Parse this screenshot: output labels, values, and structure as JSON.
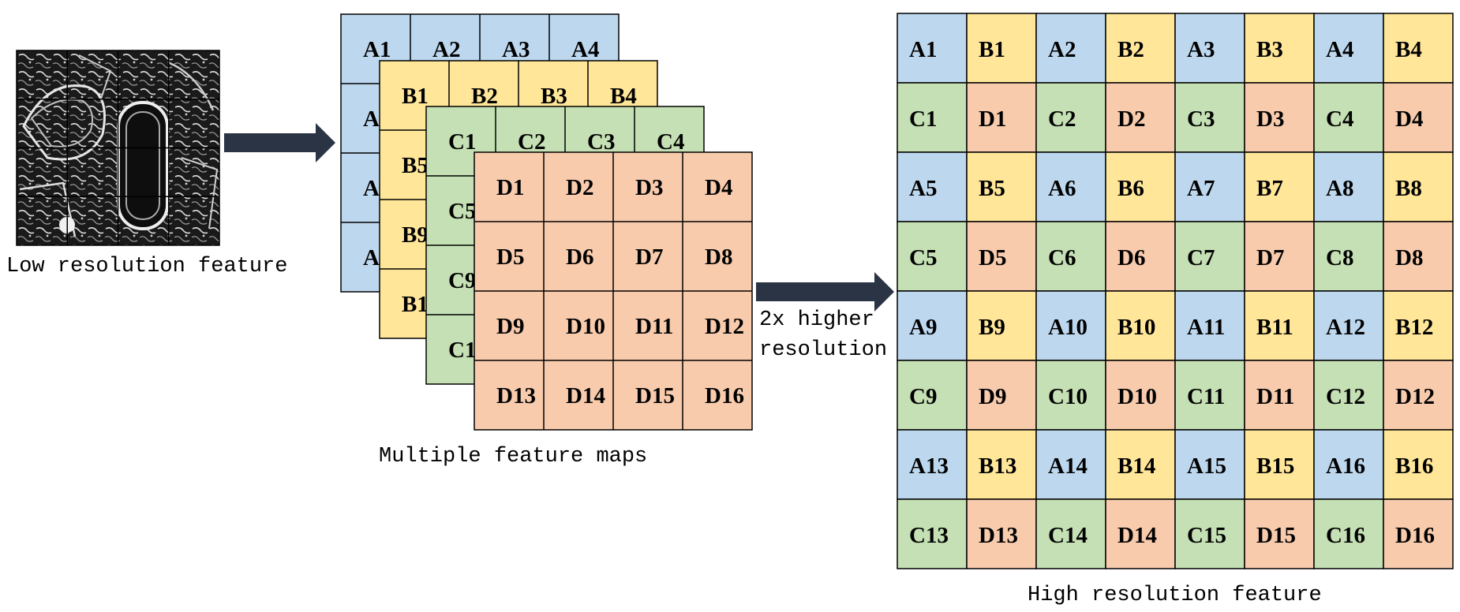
{
  "colors": {
    "A": "#bdd7ee",
    "B": "#ffe699",
    "C": "#c5e0b4",
    "D": "#f8cbad",
    "arrow": "#2a3444",
    "grid_line": "#000000"
  },
  "low_res": {
    "caption": "Low resolution feature"
  },
  "feature_maps": {
    "caption": "Multiple feature maps",
    "layers": [
      {
        "prefix": "A",
        "visible_labels": [
          "A1",
          "A2",
          "A3",
          "A4",
          "A",
          "A",
          "A1"
        ]
      },
      {
        "prefix": "B",
        "visible_labels": [
          "B1",
          "B2",
          "B3",
          "B4",
          "B5",
          "B9",
          "B1"
        ]
      },
      {
        "prefix": "C",
        "visible_labels": [
          "C1",
          "C2",
          "C3",
          "C4",
          "C5",
          "C9",
          "C1"
        ]
      },
      {
        "prefix": "D",
        "visible_labels": [
          "D1",
          "D2",
          "D3",
          "D4",
          "D5",
          "D6",
          "D7",
          "D8",
          "D9",
          "D10",
          "D11",
          "D12",
          "D13",
          "D14",
          "D15",
          "D16"
        ]
      }
    ]
  },
  "arrow2_label": {
    "line1": "2x higher",
    "line2": "resolution"
  },
  "high_res": {
    "caption": "High resolution feature",
    "rows": [
      [
        "A1",
        "B1",
        "A2",
        "B2",
        "A3",
        "B3",
        "A4",
        "B4"
      ],
      [
        "C1",
        "D1",
        "C2",
        "D2",
        "C3",
        "D3",
        "C4",
        "D4"
      ],
      [
        "A5",
        "B5",
        "A6",
        "B6",
        "A7",
        "B7",
        "A8",
        "B8"
      ],
      [
        "C5",
        "D5",
        "C6",
        "D6",
        "C7",
        "D7",
        "C8",
        "D8"
      ],
      [
        "A9",
        "B9",
        "A10",
        "B10",
        "A11",
        "B11",
        "A12",
        "B12"
      ],
      [
        "C9",
        "D9",
        "C10",
        "D10",
        "C11",
        "D11",
        "C12",
        "D12"
      ],
      [
        "A13",
        "B13",
        "A14",
        "B14",
        "A15",
        "B15",
        "A16",
        "B16"
      ],
      [
        "C13",
        "D13",
        "C14",
        "D14",
        "C15",
        "D15",
        "C16",
        "D16"
      ]
    ]
  }
}
